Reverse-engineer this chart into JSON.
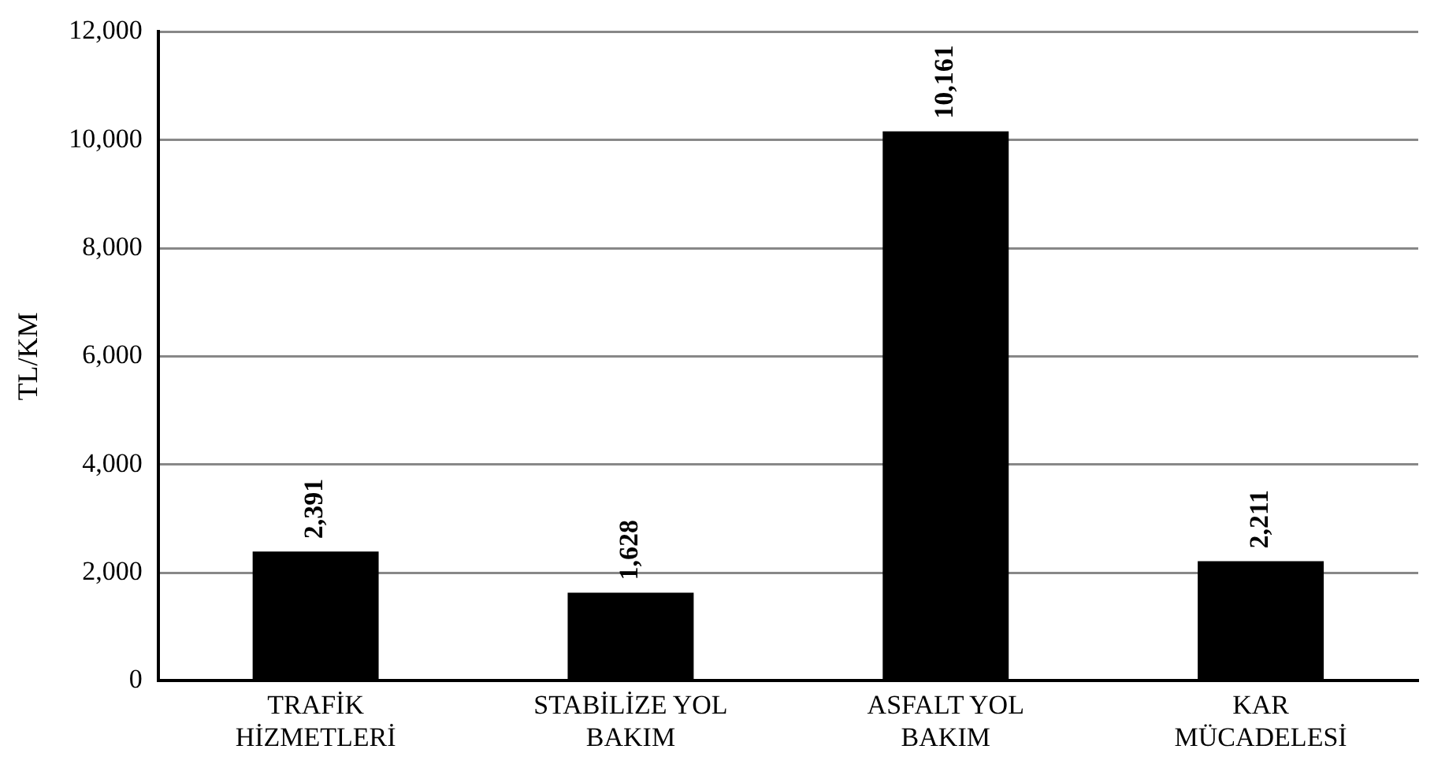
{
  "chart_data": {
    "type": "bar",
    "ylabel": "TL/KM",
    "categories": [
      "TRAFİK\nHİZMETLERİ",
      "STABİLİZE YOL\nBAKIM",
      "ASFALT YOL\nBAKIM",
      "KAR\nMÜCADELESİ"
    ],
    "values": [
      2391,
      1628,
      10161,
      2211
    ],
    "color": "#000000",
    "value_labels": [
      "2,391",
      "1,628",
      "10,161",
      "2,211"
    ],
    "ylim": [
      0,
      12000
    ],
    "yticks": [
      0,
      {
        "value": 2000,
        "label": "2,000"
      },
      {
        "value": 4000,
        "label": "4,000"
      },
      {
        "value": 6000,
        "label": "6,000"
      },
      {
        "value": 8000,
        "label": "8,000"
      },
      {
        "value": 10000,
        "label": "10,000"
      },
      {
        "value": 12000,
        "label": "12,000"
      }
    ],
    "grid": "y"
  }
}
